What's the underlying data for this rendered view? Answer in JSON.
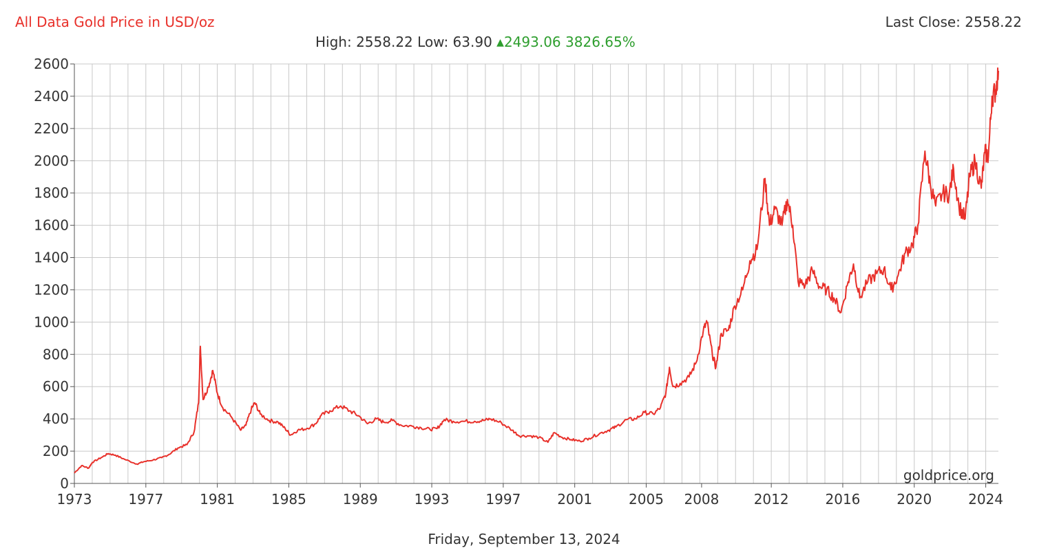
{
  "header": {
    "title": "All Data Gold Price in USD/oz",
    "last_close_label": "Last Close:",
    "last_close_value": "2558.22",
    "high_label": "High:",
    "high_value": "2558.22",
    "low_label": "Low:",
    "low_value": "63.90",
    "change_value": "2493.06",
    "change_pct": "3826.65%"
  },
  "footer_date": "Friday, September 13, 2024",
  "watermark": "goldprice.org",
  "colors": {
    "line": "#e8302a",
    "title": "#e8302a",
    "change": "#2e9e2e",
    "grid": "#c8c8c8",
    "text": "#333333"
  },
  "chart_data": {
    "type": "line",
    "title": "All Data Gold Price in USD/oz",
    "xlabel": "",
    "ylabel": "",
    "xlim": [
      1973,
      2024.71
    ],
    "ylim": [
      0,
      2600
    ],
    "yticks": [
      0,
      200,
      400,
      600,
      800,
      1000,
      1200,
      1400,
      1600,
      1800,
      2000,
      2200,
      2400,
      2600
    ],
    "xticks": [
      {
        "value": 1973.0,
        "label": "1973"
      },
      {
        "value": 1977.0,
        "label": "1977"
      },
      {
        "value": 1981.0,
        "label": "1981"
      },
      {
        "value": 1985.0,
        "label": "1985"
      },
      {
        "value": 1989.0,
        "label": "1989"
      },
      {
        "value": 1993.0,
        "label": "1993"
      },
      {
        "value": 1997.0,
        "label": "1997"
      },
      {
        "value": 2001.0,
        "label": "2001"
      },
      {
        "value": 2005.0,
        "label": "2005"
      },
      {
        "value": 2008.1,
        "label": "2008"
      },
      {
        "value": 2012.0,
        "label": "2012"
      },
      {
        "value": 2016.0,
        "label": "2016"
      },
      {
        "value": 2020.0,
        "label": "2020"
      },
      {
        "value": 2024.0,
        "label": "2024"
      }
    ],
    "grid": true,
    "series": [
      {
        "values": [
          [
            1973.0,
            65
          ],
          [
            1973.4,
            110
          ],
          [
            1973.8,
            95
          ],
          [
            1974.0,
            130
          ],
          [
            1974.5,
            160
          ],
          [
            1974.9,
            185
          ],
          [
            1975.3,
            175
          ],
          [
            1975.8,
            150
          ],
          [
            1976.5,
            120
          ],
          [
            1976.9,
            135
          ],
          [
            1977.4,
            145
          ],
          [
            1977.9,
            160
          ],
          [
            1978.3,
            180
          ],
          [
            1978.8,
            220
          ],
          [
            1979.3,
            240
          ],
          [
            1979.7,
            320
          ],
          [
            1979.95,
            500
          ],
          [
            1980.05,
            850
          ],
          [
            1980.2,
            520
          ],
          [
            1980.5,
            600
          ],
          [
            1980.75,
            700
          ],
          [
            1981.0,
            560
          ],
          [
            1981.3,
            470
          ],
          [
            1981.8,
            410
          ],
          [
            1982.3,
            330
          ],
          [
            1982.6,
            360
          ],
          [
            1982.9,
            460
          ],
          [
            1983.1,
            500
          ],
          [
            1983.4,
            430
          ],
          [
            1983.9,
            390
          ],
          [
            1984.4,
            380
          ],
          [
            1984.8,
            340
          ],
          [
            1985.1,
            300
          ],
          [
            1985.5,
            330
          ],
          [
            1986.0,
            340
          ],
          [
            1986.5,
            370
          ],
          [
            1986.8,
            420
          ],
          [
            1987.3,
            450
          ],
          [
            1987.9,
            480
          ],
          [
            1988.4,
            450
          ],
          [
            1988.9,
            420
          ],
          [
            1989.4,
            370
          ],
          [
            1989.9,
            400
          ],
          [
            1990.3,
            380
          ],
          [
            1990.8,
            390
          ],
          [
            1991.3,
            360
          ],
          [
            1991.9,
            355
          ],
          [
            1992.4,
            345
          ],
          [
            1992.9,
            335
          ],
          [
            1993.3,
            340
          ],
          [
            1993.7,
            395
          ],
          [
            1994.2,
            385
          ],
          [
            1994.8,
            385
          ],
          [
            1995.4,
            385
          ],
          [
            1995.9,
            390
          ],
          [
            1996.3,
            400
          ],
          [
            1996.9,
            375
          ],
          [
            1997.5,
            330
          ],
          [
            1997.9,
            295
          ],
          [
            1998.5,
            295
          ],
          [
            1999.0,
            285
          ],
          [
            1999.5,
            255
          ],
          [
            1999.85,
            315
          ],
          [
            2000.3,
            285
          ],
          [
            2000.8,
            272
          ],
          [
            2001.3,
            262
          ],
          [
            2001.8,
            280
          ],
          [
            2002.4,
            310
          ],
          [
            2002.9,
            330
          ],
          [
            2003.3,
            350
          ],
          [
            2003.9,
            395
          ],
          [
            2004.4,
            400
          ],
          [
            2004.9,
            440
          ],
          [
            2005.4,
            430
          ],
          [
            2005.8,
            470
          ],
          [
            2006.1,
            560
          ],
          [
            2006.3,
            720
          ],
          [
            2006.5,
            600
          ],
          [
            2006.9,
            620
          ],
          [
            2007.4,
            660
          ],
          [
            2007.8,
            750
          ],
          [
            2008.2,
            950
          ],
          [
            2008.4,
            1000
          ],
          [
            2008.7,
            800
          ],
          [
            2008.9,
            720
          ],
          [
            2009.2,
            930
          ],
          [
            2009.6,
            950
          ],
          [
            2009.95,
            1100
          ],
          [
            2010.4,
            1200
          ],
          [
            2010.8,
            1380
          ],
          [
            2011.2,
            1450
          ],
          [
            2011.65,
            1890
          ],
          [
            2011.9,
            1600
          ],
          [
            2012.2,
            1700
          ],
          [
            2012.6,
            1600
          ],
          [
            2012.9,
            1760
          ],
          [
            2013.2,
            1600
          ],
          [
            2013.5,
            1250
          ],
          [
            2013.9,
            1230
          ],
          [
            2014.3,
            1320
          ],
          [
            2014.7,
            1220
          ],
          [
            2015.1,
            1200
          ],
          [
            2015.5,
            1150
          ],
          [
            2015.9,
            1060
          ],
          [
            2016.3,
            1250
          ],
          [
            2016.6,
            1360
          ],
          [
            2016.95,
            1150
          ],
          [
            2017.4,
            1250
          ],
          [
            2017.9,
            1300
          ],
          [
            2018.3,
            1330
          ],
          [
            2018.7,
            1200
          ],
          [
            2019.1,
            1290
          ],
          [
            2019.5,
            1430
          ],
          [
            2019.9,
            1480
          ],
          [
            2020.2,
            1600
          ],
          [
            2020.6,
            2060
          ],
          [
            2020.9,
            1850
          ],
          [
            2021.2,
            1720
          ],
          [
            2021.6,
            1800
          ],
          [
            2021.95,
            1790
          ],
          [
            2022.2,
            1950
          ],
          [
            2022.5,
            1720
          ],
          [
            2022.85,
            1640
          ],
          [
            2023.1,
            1900
          ],
          [
            2023.4,
            2000
          ],
          [
            2023.75,
            1830
          ],
          [
            2023.95,
            2050
          ],
          [
            2024.15,
            2030
          ],
          [
            2024.35,
            2400
          ],
          [
            2024.55,
            2430
          ],
          [
            2024.71,
            2558
          ]
        ]
      }
    ]
  }
}
